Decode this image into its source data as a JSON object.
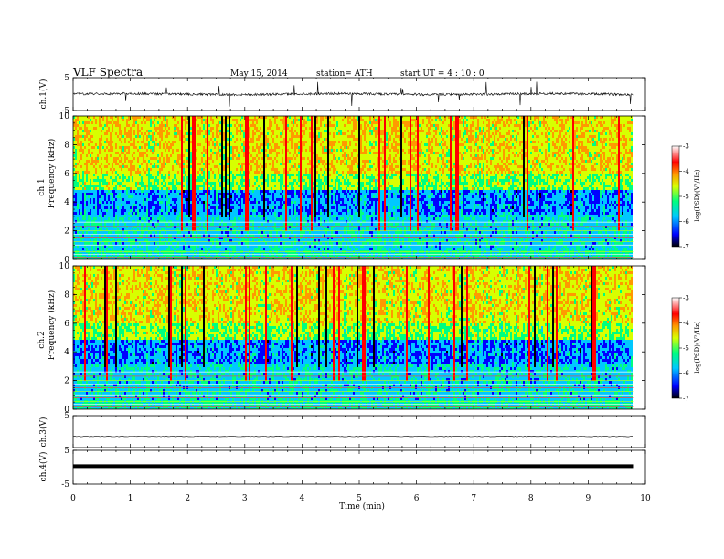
{
  "header": {
    "title": "VLF  Spectra",
    "date": "May 15, 2014",
    "station": "station= ATH",
    "start": "start  UT  =   4  : 10 : 0"
  },
  "chart_data": [
    {
      "type": "line",
      "name": "ch1-waveform",
      "ylabel": "ch.1(V)",
      "ylim": [
        -5,
        5
      ],
      "yticks": [
        "5",
        "-5"
      ],
      "xlim": [
        0,
        10
      ],
      "data_end": 9.8
    },
    {
      "type": "heatmap",
      "name": "ch1-spectrogram",
      "ylabel_top": "ch.1",
      "ylabel": "Frequency  (kHz)",
      "ylim": [
        0,
        10
      ],
      "yticks": [
        "0",
        "2",
        "4",
        "6",
        "8",
        "10"
      ],
      "xlim": [
        0,
        10
      ],
      "data_end": 9.8
    },
    {
      "type": "heatmap",
      "name": "ch2-spectrogram",
      "ylabel_top": "ch.2",
      "ylabel": "Frequency  (kHz)",
      "ylim": [
        0,
        10
      ],
      "yticks": [
        "0",
        "2",
        "4",
        "6",
        "8",
        "10"
      ],
      "xlim": [
        0,
        10
      ],
      "data_end": 9.8
    },
    {
      "type": "line",
      "name": "ch3-waveform",
      "ylabel": "ch.3(V)",
      "ylim": [
        -5,
        5
      ],
      "yticks": [
        "5"
      ],
      "xlim": [
        0,
        10
      ],
      "data_end": 9.8
    },
    {
      "type": "line",
      "name": "ch4-waveform",
      "ylabel": "ch.4(V)",
      "ylim": [
        -5,
        5
      ],
      "yticks": [
        "5",
        "-5"
      ],
      "xlim": [
        0,
        10
      ],
      "data_end": 9.8
    }
  ],
  "xaxis": {
    "label": "Time  (min)",
    "ticks": [
      "0",
      "1",
      "2",
      "3",
      "4",
      "5",
      "6",
      "7",
      "8",
      "9",
      "10"
    ]
  },
  "colorbars": [
    {
      "label": "log(PSD)(V²/Hz)",
      "range": [
        -7,
        -3
      ],
      "ticks": [
        "-3",
        "-4",
        "-5",
        "-6",
        "-7"
      ]
    },
    {
      "label": "log(PSD)(V²/Hz)",
      "range": [
        -7,
        -3
      ],
      "ticks": [
        "-3",
        "-4",
        "-5",
        "-6",
        "-7"
      ]
    }
  ],
  "colors": {
    "scale": [
      "#000000",
      "#0000ff",
      "#00c8ff",
      "#00ff7f",
      "#d7ff00",
      "#ff9900",
      "#ff0000",
      "#ffffff"
    ]
  }
}
